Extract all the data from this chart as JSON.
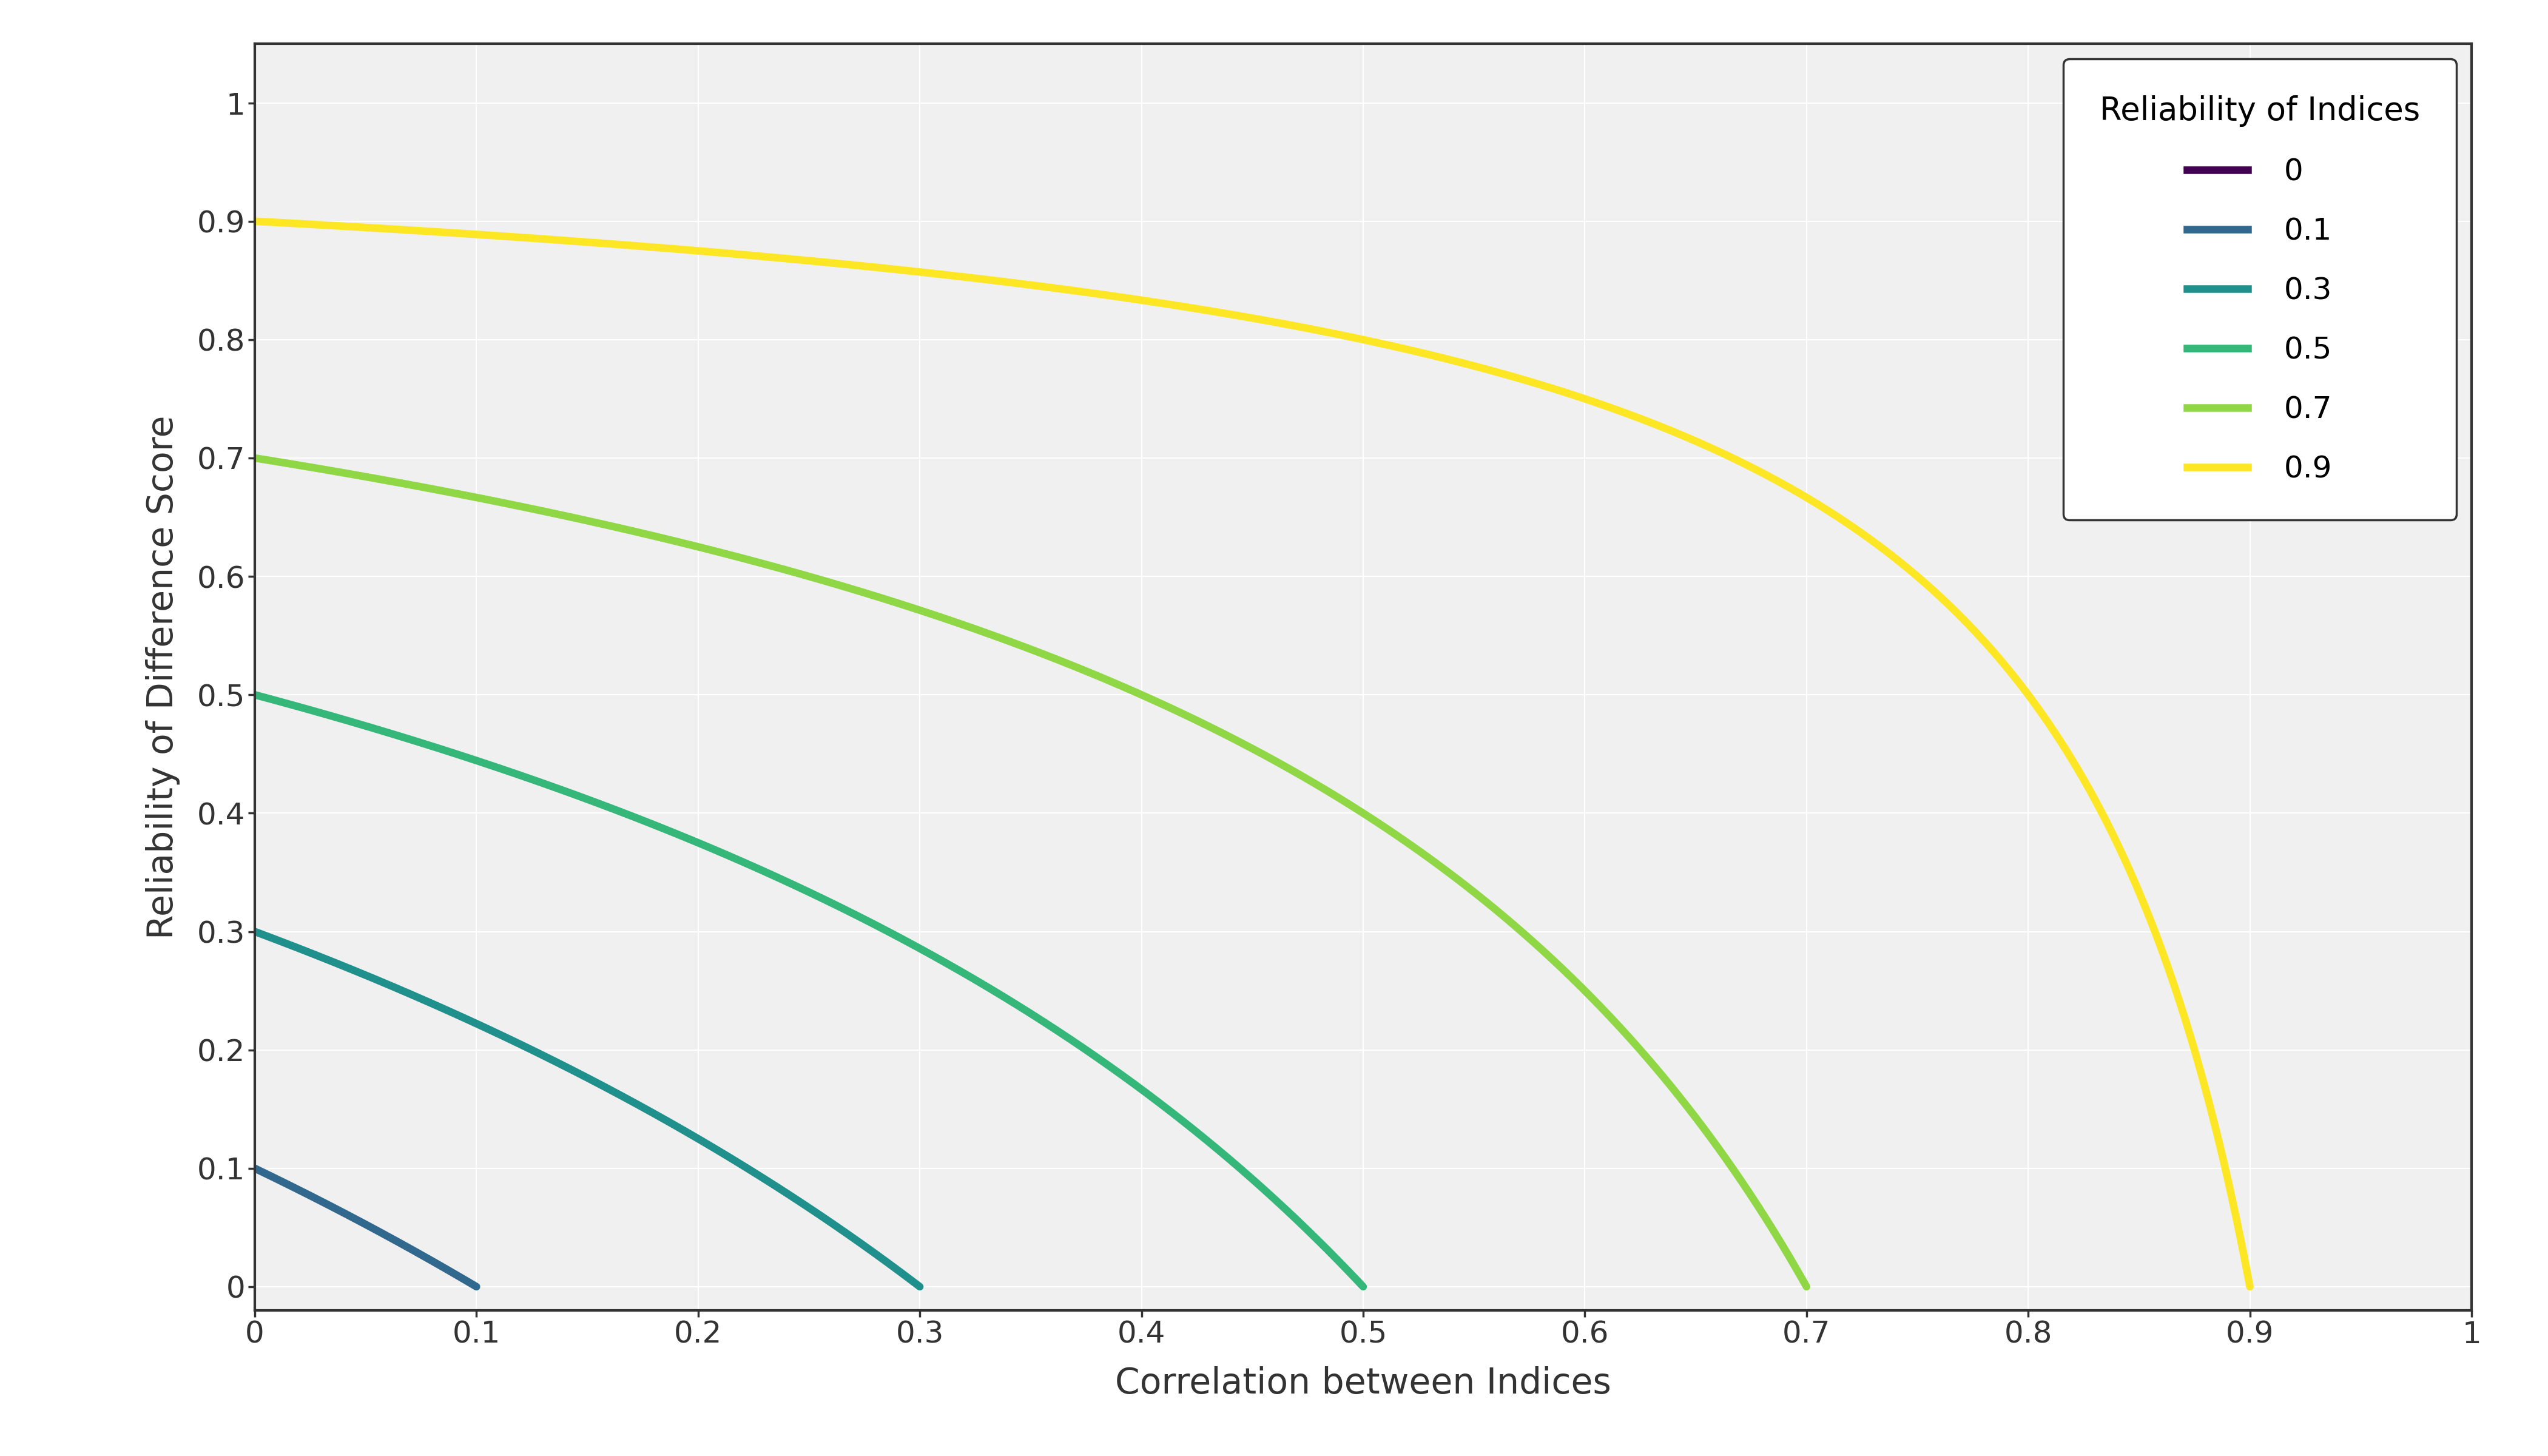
{
  "xlabel": "Correlation between Indices",
  "ylabel": "Reliability of Difference Score",
  "legend_title": "Reliability of Indices",
  "reliabilities": [
    0,
    0.1,
    0.3,
    0.5,
    0.7,
    0.9
  ],
  "colors": [
    "#440154",
    "#30688e",
    "#20908d",
    "#35b779",
    "#8fd744",
    "#fde725"
  ],
  "xlim": [
    0,
    1
  ],
  "ylim": [
    -0.02,
    1.05
  ],
  "xticks": [
    0,
    0.1,
    0.2,
    0.3,
    0.4,
    0.5,
    0.6,
    0.7,
    0.8,
    0.9,
    1.0
  ],
  "yticks": [
    0,
    0.1,
    0.2,
    0.3,
    0.4,
    0.5,
    0.6,
    0.7,
    0.8,
    0.9,
    1.0
  ],
  "line_width": 9,
  "plot_bg_color": "#f0f0f0",
  "figure_bg_color": "#ffffff",
  "grid_color": "#ffffff",
  "spine_color": "#333333",
  "tick_label_size": 36,
  "axis_label_size": 42,
  "legend_title_size": 38,
  "legend_text_size": 36,
  "legend_labels": [
    "0",
    "0.1",
    "0.3",
    "0.5",
    "0.7",
    "0.9"
  ]
}
